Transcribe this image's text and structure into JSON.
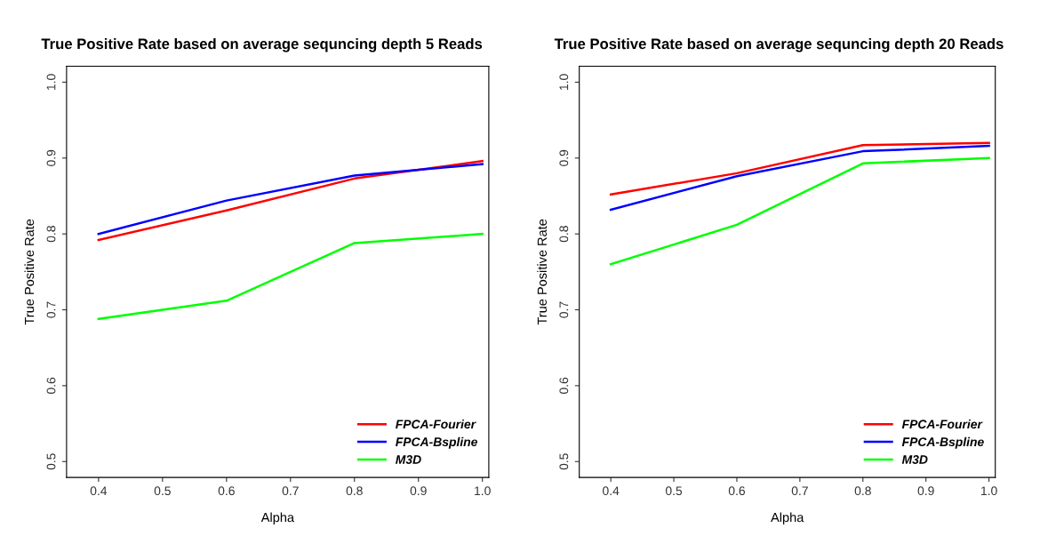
{
  "chart_data": [
    {
      "type": "line",
      "title": "True Positive Rate based on average sequncing depth 5 Reads",
      "xlabel": "Alpha",
      "ylabel": "True Positive Rate",
      "x": [
        0.4,
        0.6,
        0.8,
        1.0
      ],
      "series": [
        {
          "name": "FPCA-Fourier",
          "color": "#ff0000",
          "values": [
            0.792,
            0.831,
            0.873,
            0.896
          ]
        },
        {
          "name": "FPCA-Bspline",
          "color": "#0000ff",
          "values": [
            0.8,
            0.844,
            0.877,
            0.892
          ]
        },
        {
          "name": "M3D",
          "color": "#00ff00",
          "values": [
            0.688,
            0.712,
            0.788,
            0.8
          ]
        }
      ],
      "xlim": [
        0.35,
        1.01
      ],
      "ylim": [
        0.479,
        1.021
      ],
      "xticks": [
        0.4,
        0.5,
        0.6,
        0.7,
        0.8,
        0.9,
        {
          "value": 1.0,
          "label": "1.0"
        }
      ],
      "yticks": [
        0.5,
        0.6,
        0.7,
        0.8,
        0.9,
        {
          "value": 1.0,
          "label": "1.0"
        }
      ],
      "grid": false,
      "legend": "bottom right",
      "marker": "none",
      "line_style": "solid"
    },
    {
      "type": "line",
      "title": "True Positive Rate based on average sequncing depth 20 Reads",
      "xlabel": "Alpha",
      "ylabel": "True Positive Rate",
      "x": [
        0.4,
        0.6,
        0.8,
        1.0
      ],
      "series": [
        {
          "name": "FPCA-Fourier",
          "color": "#ff0000",
          "values": [
            0.852,
            0.88,
            0.917,
            0.92
          ]
        },
        {
          "name": "FPCA-Bspline",
          "color": "#0000ff",
          "values": [
            0.832,
            0.876,
            0.909,
            0.916
          ]
        },
        {
          "name": "M3D",
          "color": "#00ff00",
          "values": [
            0.76,
            0.812,
            0.893,
            0.9
          ]
        }
      ],
      "xlim": [
        0.35,
        1.01
      ],
      "ylim": [
        0.479,
        1.021
      ],
      "xticks": [
        0.4,
        0.5,
        0.6,
        0.7,
        0.8,
        0.9,
        {
          "value": 1.0,
          "label": "1.0"
        }
      ],
      "yticks": [
        0.5,
        0.6,
        0.7,
        0.8,
        0.9,
        {
          "value": 1.0,
          "label": "1.0"
        }
      ],
      "grid": false,
      "legend": "bottom right",
      "marker": "none",
      "line_style": "solid"
    }
  ]
}
